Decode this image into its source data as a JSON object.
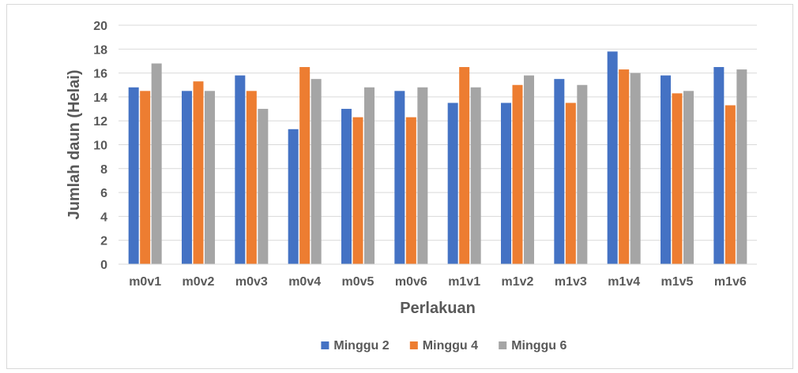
{
  "chart_data": {
    "type": "bar",
    "categories": [
      "m0v1",
      "m0v2",
      "m0v3",
      "m0v4",
      "m0v5",
      "m0v6",
      "m1v1",
      "m1v2",
      "m1v3",
      "m1v4",
      "m1v5",
      "m1v6"
    ],
    "series": [
      {
        "name": "Minggu 2",
        "color": "#4472c4",
        "values": [
          14.8,
          14.5,
          15.8,
          11.3,
          13.0,
          14.5,
          13.5,
          13.5,
          15.5,
          17.8,
          15.8,
          16.5
        ]
      },
      {
        "name": "Minggu 4",
        "color": "#ed7d31",
        "values": [
          14.5,
          15.3,
          14.5,
          16.5,
          12.3,
          12.3,
          16.5,
          15.0,
          13.5,
          16.3,
          14.3,
          13.3
        ]
      },
      {
        "name": "Minggu 6",
        "color": "#a5a5a5",
        "values": [
          16.8,
          14.5,
          13.0,
          15.5,
          14.8,
          14.8,
          14.8,
          15.8,
          15.0,
          16.0,
          14.5,
          16.3
        ]
      }
    ],
    "xlabel": "Perlakuan",
    "ylabel": "Jumlah daun (Helai)",
    "ylim": [
      0,
      20
    ],
    "yticks": [
      "0",
      "2",
      "4",
      "6",
      "8",
      "10",
      "12",
      "14",
      "16",
      "18",
      "20"
    ],
    "grid": true,
    "legend_position": "bottom"
  }
}
